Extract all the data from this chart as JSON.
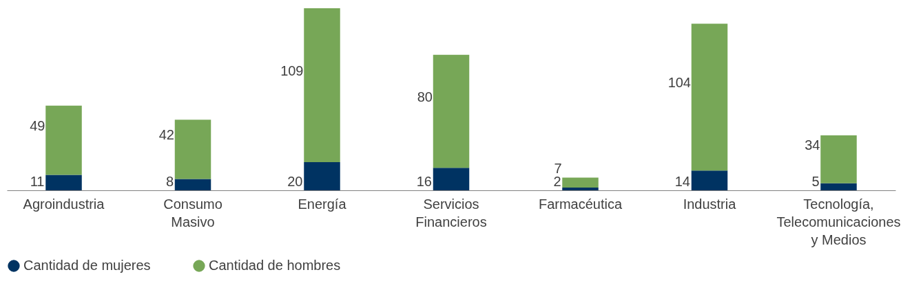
{
  "chart_data": {
    "type": "bar",
    "stacked": true,
    "data_labels": true,
    "legend": "bottom",
    "grid": false,
    "categories": [
      "Agroindustria",
      "Consumo\nMasivo",
      "Energía",
      "Servicios\nFinancieros",
      "Farmacéutica",
      "Industria",
      "Tecnología,\nTelecomunicaciones\ny Medios"
    ],
    "series": [
      {
        "name": "Cantidad de mujeres",
        "color": "#003362",
        "values": [
          11,
          8,
          20,
          16,
          2,
          14,
          5
        ]
      },
      {
        "name": "Cantidad de hombres",
        "color": "#77a757",
        "values": [
          49,
          42,
          109,
          80,
          7,
          104,
          34
        ]
      }
    ]
  }
}
